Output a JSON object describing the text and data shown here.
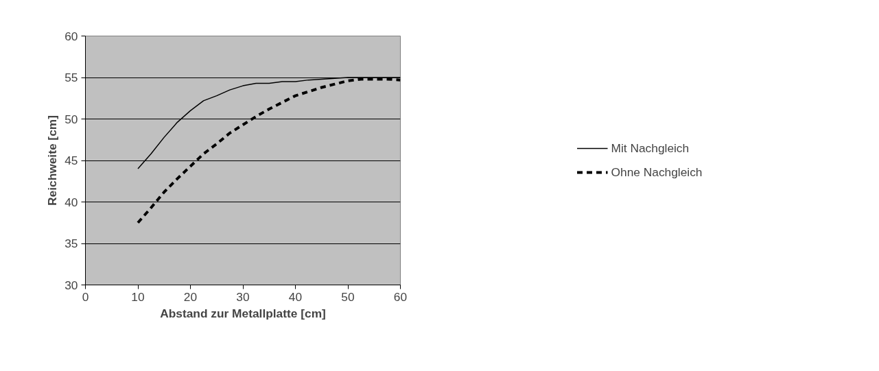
{
  "chart_data": {
    "type": "line",
    "xlabel": "Abstand zur Metallplatte [cm]",
    "ylabel": "Reichweite [cm]",
    "x": [
      10,
      12.5,
      15,
      17.5,
      20,
      22.5,
      25,
      27.5,
      30,
      32.5,
      35,
      37.5,
      40,
      42.5,
      45,
      47.5,
      50,
      52.5,
      55,
      57.5,
      60
    ],
    "series": [
      {
        "name": "Mit Nachgleich",
        "color": "#000000",
        "line_style": "solid",
        "values": [
          44,
          45.8,
          47.8,
          49.6,
          51,
          52.2,
          52.8,
          53.5,
          54,
          54.3,
          54.3,
          54.5,
          54.5,
          54.7,
          54.8,
          54.9,
          55,
          55,
          55,
          55,
          55
        ]
      },
      {
        "name": "Ohne Nachgleich",
        "color": "#000000",
        "line_style": "dashed",
        "values": [
          37.5,
          39.3,
          41.2,
          42.8,
          44.3,
          45.8,
          47,
          48.3,
          49.3,
          50.3,
          51.2,
          52,
          52.8,
          53.3,
          53.8,
          54.2,
          54.6,
          54.8,
          54.8,
          54.8,
          54.7
        ]
      }
    ],
    "xlim": [
      0,
      60
    ],
    "xticks": [
      0,
      10,
      20,
      30,
      40,
      50,
      60
    ],
    "ylim": [
      30,
      60
    ],
    "yticks": [
      30,
      35,
      40,
      45,
      50,
      55,
      60
    ],
    "grid": "y",
    "legend": "right"
  }
}
